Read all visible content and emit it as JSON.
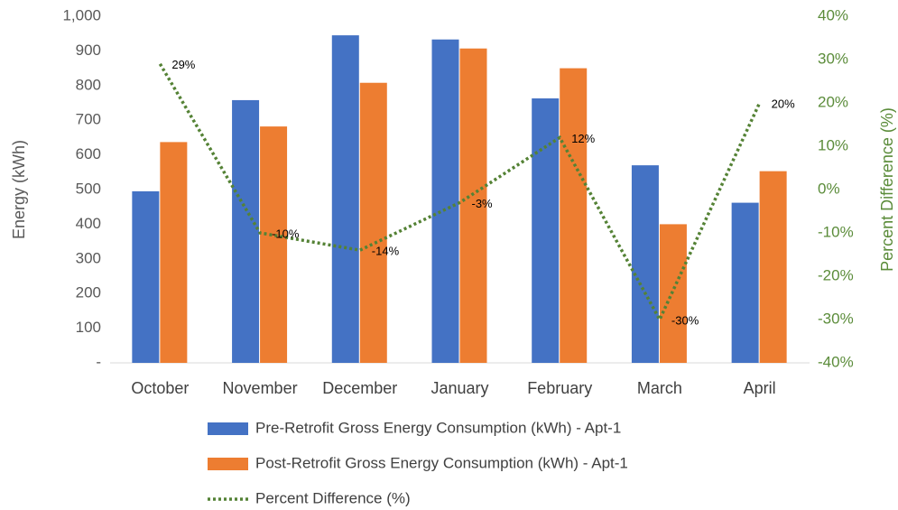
{
  "chart_data": {
    "type": "bar",
    "categories": [
      "October",
      "November",
      "December",
      "January",
      "February",
      "March",
      "April"
    ],
    "y_label": "Energy (kWh)",
    "y2_label": "Percent Difference (%)",
    "ylim": [
      0,
      1000
    ],
    "yticks": [
      {
        "value": 0,
        "label": "-"
      },
      100,
      200,
      300,
      400,
      500,
      600,
      700,
      800,
      900,
      {
        "value": 1000,
        "label": "1,000"
      }
    ],
    "y2lim": [
      -40,
      40
    ],
    "y2ticks": [
      {
        "value": -40,
        "label": "-40%"
      },
      {
        "value": -30,
        "label": "-30%"
      },
      {
        "value": -20,
        "label": "-20%"
      },
      {
        "value": -10,
        "label": "-10%"
      },
      {
        "value": 0,
        "label": "0%"
      },
      {
        "value": 10,
        "label": "10%"
      },
      {
        "value": 20,
        "label": "20%"
      },
      {
        "value": 30,
        "label": "30%"
      },
      {
        "value": 40,
        "label": "40%"
      }
    ],
    "series": [
      {
        "name": "Pre-Retrofit Gross Energy Consumption (kWh) - Apt-1",
        "type": "bar",
        "color": "#4472c4",
        "values": [
          495,
          758,
          945,
          933,
          763,
          570,
          462
        ]
      },
      {
        "name": "Post-Retrofit Gross Energy Consumption (kWh) - Apt-1",
        "type": "bar",
        "color": "#ed7d31",
        "values": [
          637,
          682,
          808,
          907,
          850,
          400,
          553
        ]
      },
      {
        "name": "Percent Difference (%)",
        "type": "line",
        "axis": "y2",
        "color": "#548235",
        "dotted": true,
        "values": [
          29,
          -10,
          -14,
          -3,
          12,
          -30,
          20
        ],
        "value_labels": [
          "29%",
          "-10%",
          "-14%",
          "-3%",
          "12%",
          "-30%",
          "20%"
        ]
      }
    ],
    "legend": "bottom"
  }
}
